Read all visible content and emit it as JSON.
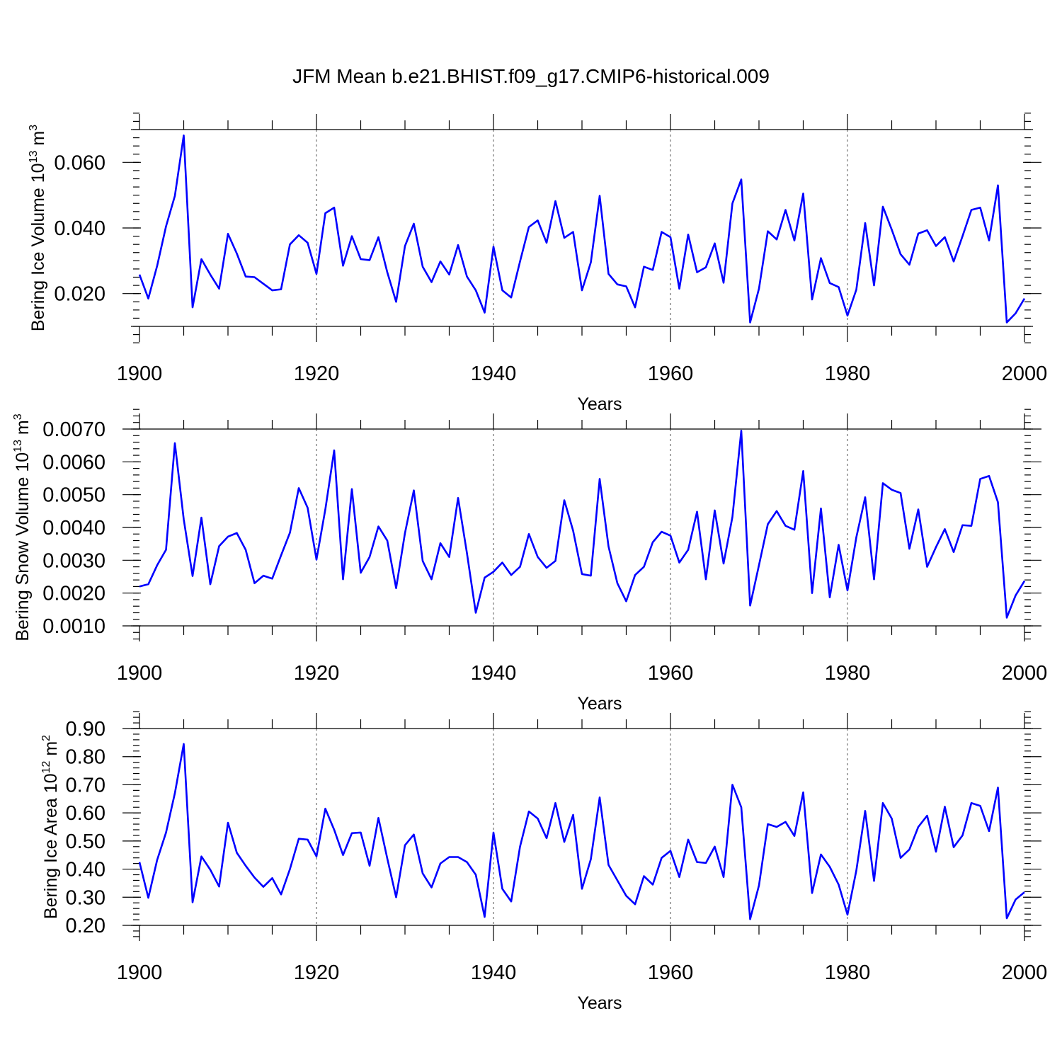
{
  "chart_data": {
    "title": "JFM Mean b.e21.BHIST.f09_g17.CMIP6-historical.009",
    "panels": [
      {
        "type": "line",
        "ylabel": "Bering Ice Volume",
        "ylabel_unit_base": "10",
        "ylabel_unit_exp": "13",
        "ylabel_unit_tail": "m",
        "ylabel_unit_tail_exp": "3",
        "xlabel": "Years",
        "xlim": [
          1900,
          2000
        ],
        "ylim": [
          0.01,
          0.07
        ],
        "x_ticks": [
          "1900",
          "1920",
          "1940",
          "1960",
          "1980",
          "2000"
        ],
        "y_ticks": [
          0.02,
          0.04,
          0.06
        ],
        "y_tick_labels": [
          "0.020",
          "0.040",
          "0.060"
        ],
        "y_minor_step": 0.0025,
        "grid_x": [
          1920,
          1940,
          1960,
          1980
        ],
        "series": [
          {
            "name": "Bering Ice Volume",
            "color": "#0000ff",
            "x_start": 1900,
            "values": [
              0.0258,
              0.0185,
              0.0285,
              0.0405,
              0.0498,
              0.0682,
              0.0158,
              0.0305,
              0.0258,
              0.0215,
              0.0382,
              0.0322,
              0.0252,
              0.025,
              0.023,
              0.021,
              0.0213,
              0.035,
              0.0378,
              0.0355,
              0.026,
              0.0445,
              0.0462,
              0.0285,
              0.0375,
              0.0305,
              0.0302,
              0.0372,
              0.0265,
              0.0175,
              0.0345,
              0.0413,
              0.0282,
              0.0235,
              0.0298,
              0.0258,
              0.0348,
              0.0252,
              0.021,
              0.0142,
              0.0343,
              0.021,
              0.0188,
              0.0298,
              0.0403,
              0.0423,
              0.0355,
              0.0482,
              0.037,
              0.0388,
              0.021,
              0.0295,
              0.0498,
              0.026,
              0.0228,
              0.0222,
              0.0158,
              0.0282,
              0.0272,
              0.0388,
              0.0372,
              0.0215,
              0.038,
              0.0265,
              0.028,
              0.0353,
              0.0233,
              0.0475,
              0.0548,
              0.0112,
              0.0215,
              0.039,
              0.0365,
              0.0455,
              0.0362,
              0.0505,
              0.0182,
              0.0308,
              0.0232,
              0.022,
              0.0133,
              0.0212,
              0.0415,
              0.0225,
              0.0465,
              0.0395,
              0.032,
              0.0288,
              0.0383,
              0.0393,
              0.0345,
              0.0372,
              0.0298,
              0.0375,
              0.0455,
              0.0462,
              0.0362,
              0.053,
              0.0112,
              0.014,
              0.0185
            ]
          }
        ]
      },
      {
        "type": "line",
        "ylabel": "Bering Snow Volume",
        "ylabel_unit_base": "10",
        "ylabel_unit_exp": "13",
        "ylabel_unit_tail": "m",
        "ylabel_unit_tail_exp": "3",
        "xlabel": "Years",
        "xlim": [
          1900,
          2000
        ],
        "ylim": [
          0.001,
          0.007
        ],
        "x_ticks": [
          "1900",
          "1920",
          "1940",
          "1960",
          "1980",
          "2000"
        ],
        "y_ticks": [
          0.001,
          0.002,
          0.003,
          0.004,
          0.005,
          0.006,
          0.007
        ],
        "y_tick_labels": [
          "0.0010",
          "0.0020",
          "0.0030",
          "0.0040",
          "0.0050",
          "0.0060",
          "0.0070"
        ],
        "y_minor_step": 0.0002,
        "grid_x": [
          1920,
          1940,
          1960,
          1980
        ],
        "series": [
          {
            "name": "Bering Snow Volume",
            "color": "#0000ff",
            "x_start": 1900,
            "values": [
              0.0022,
              0.00227,
              0.00285,
              0.00332,
              0.00657,
              0.00425,
              0.00252,
              0.0043,
              0.00227,
              0.00343,
              0.00372,
              0.00383,
              0.00332,
              0.0023,
              0.00253,
              0.00244,
              0.00315,
              0.00384,
              0.0052,
              0.0046,
              0.00302,
              0.00455,
              0.00635,
              0.00242,
              0.00517,
              0.00262,
              0.0031,
              0.00403,
              0.0036,
              0.00215,
              0.00383,
              0.00513,
              0.00298,
              0.00242,
              0.00352,
              0.0031,
              0.0049,
              0.00322,
              0.0014,
              0.00247,
              0.00265,
              0.00293,
              0.00255,
              0.0028,
              0.0038,
              0.0031,
              0.00277,
              0.00298,
              0.00483,
              0.0039,
              0.00258,
              0.00253,
              0.00548,
              0.00342,
              0.0023,
              0.00175,
              0.00255,
              0.0028,
              0.00355,
              0.00387,
              0.00375,
              0.00293,
              0.00332,
              0.00448,
              0.00242,
              0.00452,
              0.0029,
              0.00432,
              0.00695,
              0.00162,
              0.00285,
              0.0041,
              0.0045,
              0.00405,
              0.00393,
              0.00572,
              0.002,
              0.00458,
              0.00187,
              0.00347,
              0.00208,
              0.0037,
              0.00492,
              0.00242,
              0.00535,
              0.00515,
              0.00505,
              0.00335,
              0.00455,
              0.0028,
              0.0034,
              0.00395,
              0.00325,
              0.00407,
              0.00405,
              0.00548,
              0.00557,
              0.00477,
              0.00125,
              0.00193,
              0.00237
            ]
          }
        ]
      },
      {
        "type": "line",
        "ylabel": "Bering Ice Area",
        "ylabel_unit_base": "10",
        "ylabel_unit_exp": "12",
        "ylabel_unit_tail": "m",
        "ylabel_unit_tail_exp": "2",
        "xlabel": "Years",
        "xlim": [
          1900,
          2000
        ],
        "ylim": [
          0.2,
          0.9
        ],
        "x_ticks": [
          "1900",
          "1920",
          "1940",
          "1960",
          "1980",
          "2000"
        ],
        "y_ticks": [
          0.2,
          0.3,
          0.4,
          0.5,
          0.6,
          0.7,
          0.8,
          0.9
        ],
        "y_tick_labels": [
          "0.20",
          "0.30",
          "0.40",
          "0.50",
          "0.60",
          "0.70",
          "0.80",
          "0.90"
        ],
        "y_minor_step": 0.02,
        "grid_x": [
          1920,
          1940,
          1960,
          1980
        ],
        "series": [
          {
            "name": "Bering Ice Area",
            "color": "#0000ff",
            "x_start": 1900,
            "values": [
              0.425,
              0.298,
              0.433,
              0.53,
              0.67,
              0.845,
              0.282,
              0.445,
              0.398,
              0.338,
              0.565,
              0.458,
              0.412,
              0.37,
              0.337,
              0.368,
              0.31,
              0.4,
              0.508,
              0.505,
              0.445,
              0.615,
              0.54,
              0.45,
              0.528,
              0.53,
              0.412,
              0.582,
              0.438,
              0.3,
              0.485,
              0.523,
              0.385,
              0.335,
              0.42,
              0.443,
              0.443,
              0.425,
              0.38,
              0.23,
              0.53,
              0.33,
              0.285,
              0.48,
              0.605,
              0.58,
              0.51,
              0.635,
              0.497,
              0.593,
              0.33,
              0.435,
              0.655,
              0.415,
              0.36,
              0.305,
              0.275,
              0.375,
              0.345,
              0.44,
              0.465,
              0.372,
              0.505,
              0.425,
              0.422,
              0.48,
              0.372,
              0.7,
              0.62,
              0.222,
              0.342,
              0.56,
              0.55,
              0.568,
              0.518,
              0.673,
              0.315,
              0.452,
              0.408,
              0.345,
              0.238,
              0.395,
              0.607,
              0.358,
              0.635,
              0.58,
              0.44,
              0.47,
              0.55,
              0.59,
              0.462,
              0.622,
              0.478,
              0.52,
              0.635,
              0.625,
              0.535,
              0.69,
              0.225,
              0.292,
              0.318
            ]
          }
        ]
      }
    ]
  }
}
